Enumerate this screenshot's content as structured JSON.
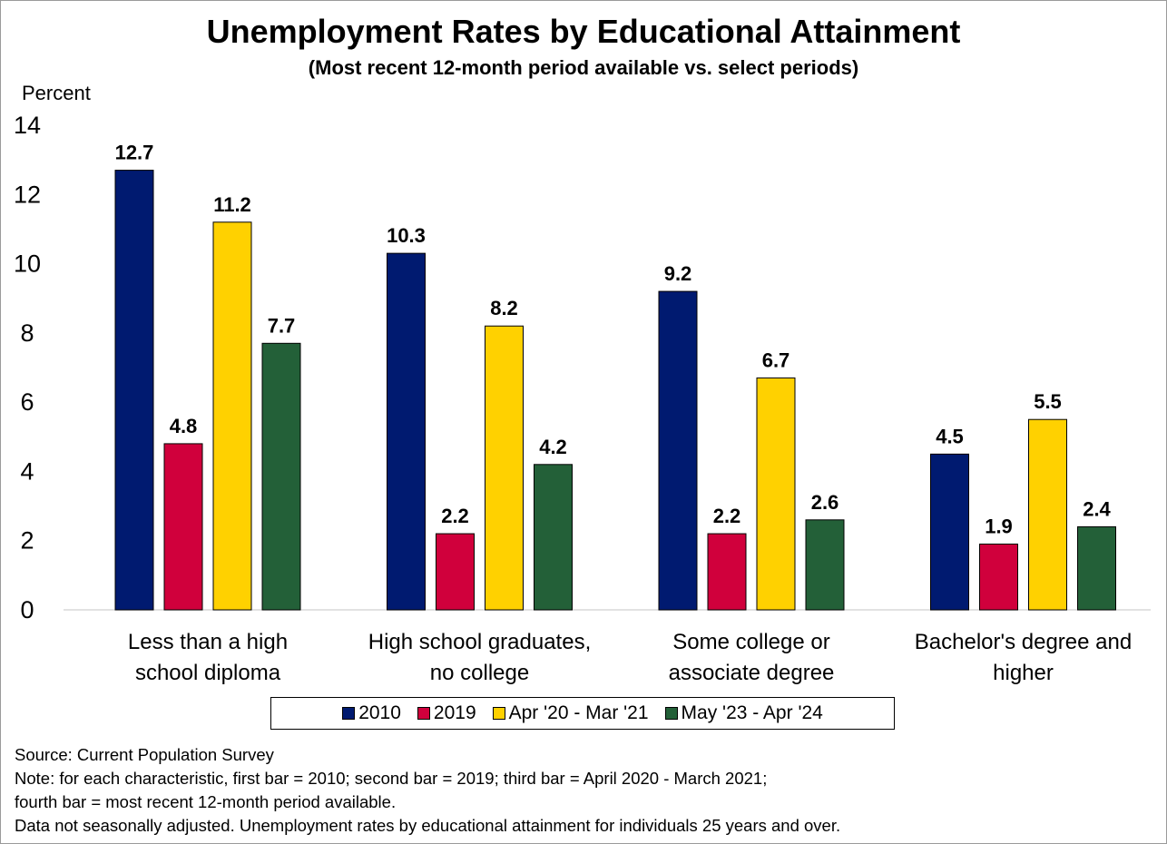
{
  "chart_data": {
    "type": "bar",
    "title": "Unemployment Rates by Educational Attainment",
    "subtitle": "(Most recent 12-month period available vs. select periods)",
    "ylabel": "Percent",
    "ylim": [
      0,
      14
    ],
    "yticks": [
      "0",
      "2",
      "4",
      "6",
      "8",
      "10",
      "12",
      "14"
    ],
    "grid": false,
    "legend_position": "bottom",
    "categories": [
      [
        "Less than a high",
        "school diploma"
      ],
      [
        "High school graduates,",
        "no college"
      ],
      [
        "Some college or",
        "associate degree"
      ],
      [
        "Bachelor's degree and",
        "higher"
      ]
    ],
    "series": [
      {
        "name": "2010",
        "color": "#001A70",
        "values": [
          12.7,
          10.3,
          9.2,
          4.5
        ],
        "labels": [
          "12.7",
          "10.3",
          "9.2",
          "4.5"
        ]
      },
      {
        "name": "2019",
        "color": "#D0003C",
        "values": [
          4.8,
          2.2,
          2.2,
          1.9
        ],
        "labels": [
          "4.8",
          "2.2",
          "2.2",
          "1.9"
        ]
      },
      {
        "name": "Apr '20 - Mar '21",
        "color": "#FFD100",
        "values": [
          11.2,
          8.2,
          6.7,
          5.5
        ],
        "labels": [
          "11.2",
          "8.2",
          "6.7",
          "5.5"
        ]
      },
      {
        "name": "May '23 - Apr '24",
        "color": "#236038",
        "values": [
          7.7,
          4.2,
          2.6,
          2.4
        ],
        "labels": [
          "7.7",
          "4.2",
          "2.6",
          "2.4"
        ]
      }
    ]
  },
  "notes": [
    "Source: Current Population Survey",
    "Note: for each characteristic, first bar = 2010; second bar = 2019; third bar = April 2020 - March 2021;",
    "fourth bar = most recent 12-month period available.",
    "Data not seasonally adjusted. Unemployment rates by educational attainment for individuals 25 years and over."
  ]
}
